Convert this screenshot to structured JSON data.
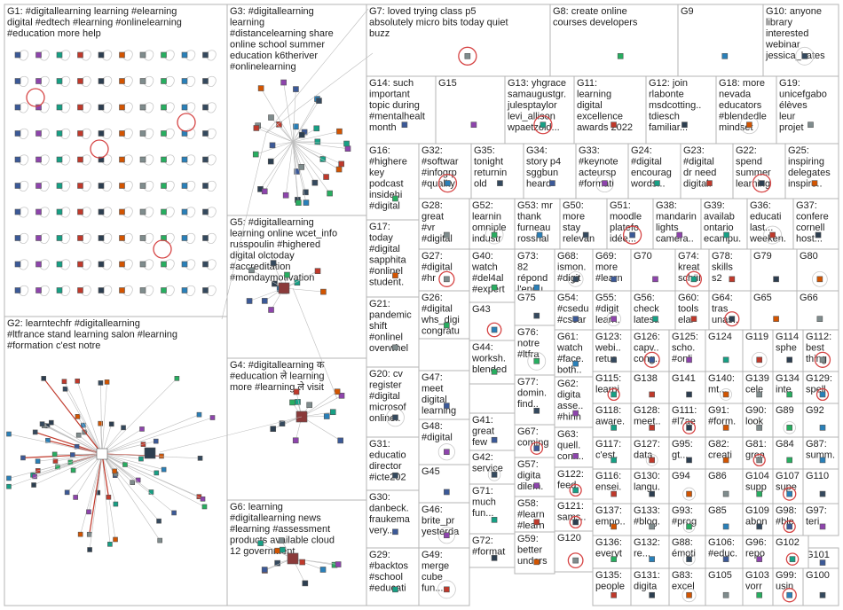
{
  "groups": [
    {
      "id": "G1",
      "label": "G1: #digitallearning learning #elearning digital #edtech #learning #onlinelearning #education more help"
    },
    {
      "id": "G2",
      "label": "G2: learntechfr #digitallearning #ltfrance stand learning salon #learning #formation c'est notre"
    },
    {
      "id": "G3",
      "label": "G3: #digitallearning learning #distancelearning share online school summer education k6theriver #onlinelearning"
    },
    {
      "id": "G4",
      "label": "G4: #digitallearning क #education ले learning more #learning ले visit"
    },
    {
      "id": "G5",
      "label": "G5: #digitallearning learning online wcet_info russpoulin #highered digital olctoday #accreditation #mondaymotivation"
    },
    {
      "id": "G6",
      "label": "G6: learning #digitallearning news #learning #assessment products available cloud 12 government"
    },
    {
      "id": "G7",
      "label": "G7: loved trying class p5 absolutely micro bits today quiet buzz"
    },
    {
      "id": "G8",
      "label": "G8: create online courses developers"
    },
    {
      "id": "G9",
      "label": "G9"
    },
    {
      "id": "G10",
      "label": "G10: anyone library interested webinar jessica_bates..."
    },
    {
      "id": "G11",
      "label": "G11: learning digital excellence awards 2022 candidats..."
    },
    {
      "id": "G12",
      "label": "G12: join rlabonte msdcotting... tdiesch familiar..."
    },
    {
      "id": "G13",
      "label": "G13: yhgrace samaugustgr... julesptaylor levi_allison42 wpaetzold..."
    },
    {
      "id": "G14",
      "label": "G14: such important topic during #mentalhealt... month come..."
    },
    {
      "id": "G15",
      "label": "G15"
    },
    {
      "id": "G16",
      "label": "G16: #highered key podcast insidehig... #digitalle..."
    },
    {
      "id": "G17",
      "label": "G17: today #digitalle... sapphital #onlinele... student..."
    },
    {
      "id": "G18",
      "label": "G18: more nevada educators #blendedle... mindset"
    },
    {
      "id": "G19",
      "label": "G19: unicefgabon élèves leur projet #digital..."
    },
    {
      "id": "G20",
      "label": "G20: cv register #digitalle... microsoft... online..."
    },
    {
      "id": "G21",
      "label": "G21: pandemic shift #onlinele... overwhel..."
    },
    {
      "id": "G22",
      "label": "G22: spend summer learning..."
    },
    {
      "id": "G23",
      "label": "G23: #digitalle... dr need digital..."
    },
    {
      "id": "G24",
      "label": "G24: #digitalle... encourag... words..."
    },
    {
      "id": "G25",
      "label": "G25: inspiring delegates inspire..."
    },
    {
      "id": "G26",
      "label": "G26: #digitalle... whs_digi... congratul..."
    },
    {
      "id": "G27",
      "label": "G27: #digitalle... #hr #bessers..."
    },
    {
      "id": "G28",
      "label": "G28: great #vr #digitalle... s1 fun..."
    },
    {
      "id": "G29",
      "label": "G29: #backtos... #school #educati..."
    },
    {
      "id": "G30",
      "label": "G30: danbeck... fraukema... very..."
    },
    {
      "id": "G31",
      "label": "G31: education director #icte202..."
    },
    {
      "id": "G32",
      "label": "G32: #software #infogrphic #qualityc..."
    },
    {
      "id": "G33",
      "label": "G33: #keynote acteursp... #formatio..."
    },
    {
      "id": "G34",
      "label": "G34: story p4 sggbun heard teasing..."
    },
    {
      "id": "G35",
      "label": "G35: tonight returning old work..."
    },
    {
      "id": "G36",
      "label": "G36: educati... last... weeken..."
    },
    {
      "id": "G37",
      "label": "G37: confere... cornell_... host..."
    },
    {
      "id": "G38",
      "label": "G38: mandarin lights camera..."
    },
    {
      "id": "G39",
      "label": "G39: available ontarioe... ecampu..."
    },
    {
      "id": "G40",
      "label": "G40: watch #del4all #expert..."
    },
    {
      "id": "G41",
      "label": "G41: great few hours..."
    },
    {
      "id": "G42",
      "label": "G42: services tech"
    },
    {
      "id": "G43",
      "label": "G43"
    },
    {
      "id": "G44",
      "label": "G44: worksh... blended teachin..."
    },
    {
      "id": "G45",
      "label": "G45"
    },
    {
      "id": "G46",
      "label": "G46: brite_pro... yesterda..."
    },
    {
      "id": "G47",
      "label": "G47: meet digital learning..."
    },
    {
      "id": "G48",
      "label": "G48: #digitalle..."
    },
    {
      "id": "G49",
      "label": "G49: merge cube fun..."
    },
    {
      "id": "G50",
      "label": "G50: more stay relevant..."
    },
    {
      "id": "G51",
      "label": "G51: moodle platefor... idée..."
    },
    {
      "id": "G52",
      "label": "G52: learning omniplex industry..."
    },
    {
      "id": "G53",
      "label": "G53: mr thank furneaux rosshall..."
    },
    {
      "id": "G54",
      "label": "G54: #csedu... #cscar..."
    },
    {
      "id": "G55",
      "label": "G55: #digitalle... learn..."
    },
    {
      "id": "G56",
      "label": "G56: check latest..."
    },
    {
      "id": "G57",
      "label": "G57: digital dilem..."
    },
    {
      "id": "G58",
      "label": "G58: #learni... #learni..."
    },
    {
      "id": "G59",
      "label": "G59: better unders..."
    },
    {
      "id": "G60",
      "label": "G60: tools elar ss..."
    },
    {
      "id": "G61",
      "label": "G61: watch #face... both..."
    },
    {
      "id": "G62",
      "label": "G62: digital asse... #hirin..."
    },
    {
      "id": "G63",
      "label": "G63: quell... conn... km..."
    },
    {
      "id": "G64",
      "label": "G64: tras unas..."
    },
    {
      "id": "G65",
      "label": "G65"
    },
    {
      "id": "G66",
      "label": "G66"
    },
    {
      "id": "G67",
      "label": "G67: coming friday..."
    },
    {
      "id": "G68",
      "label": "G68: ismon... #digita..."
    },
    {
      "id": "G69",
      "label": "G69: more #learni..."
    },
    {
      "id": "G70",
      "label": "G70"
    },
    {
      "id": "G71",
      "label": "G71: much fun..."
    },
    {
      "id": "G72",
      "label": "G72: #format... #digitall..."
    },
    {
      "id": "G73",
      "label": "G73: 82 répond... l'enquê..."
    },
    {
      "id": "G74",
      "label": "G74: kreative schüler..."
    },
    {
      "id": "G75",
      "label": "G75"
    },
    {
      "id": "G76",
      "label": "G76: notre #ltfran..."
    },
    {
      "id": "G77",
      "label": "G77: domin... find..."
    },
    {
      "id": "G78",
      "label": "G78: skills s2 using..."
    },
    {
      "id": "G79",
      "label": "G79"
    },
    {
      "id": "G80",
      "label": "G80"
    },
    {
      "id": "G81",
      "label": "G81: great..."
    },
    {
      "id": "G82",
      "label": "G82: creati..."
    },
    {
      "id": "G83",
      "label": "G83: excel..."
    },
    {
      "id": "G84",
      "label": "G84"
    },
    {
      "id": "G85",
      "label": "G85"
    },
    {
      "id": "G86",
      "label": "G86"
    },
    {
      "id": "G87",
      "label": "G87: summ..."
    },
    {
      "id": "G88",
      "label": "G88: émoti..."
    },
    {
      "id": "G89",
      "label": "G89"
    },
    {
      "id": "G90",
      "label": "G90: lookin..."
    },
    {
      "id": "G91",
      "label": "G91: #form..."
    },
    {
      "id": "G92",
      "label": "G92"
    },
    {
      "id": "G93",
      "label": "G93: #prog..."
    },
    {
      "id": "G94",
      "label": "G94"
    },
    {
      "id": "G95",
      "label": "G95: gt..."
    },
    {
      "id": "G96",
      "label": "G96: repor..."
    },
    {
      "id": "G97",
      "label": "G97: teri"
    },
    {
      "id": "G98",
      "label": "G98: #blend..."
    },
    {
      "id": "G99",
      "label": "G99: using"
    },
    {
      "id": "G100",
      "label": "G100"
    },
    {
      "id": "G101",
      "label": "G101"
    },
    {
      "id": "G102",
      "label": "G102"
    },
    {
      "id": "G103",
      "label": "G103: vorre..."
    },
    {
      "id": "G104",
      "label": "G104: suppo..."
    },
    {
      "id": "G105",
      "label": "G105"
    },
    {
      "id": "G106",
      "label": "G106: #educ..."
    },
    {
      "id": "G107",
      "label": "G107: super..."
    },
    {
      "id": "G108",
      "label": "G108: ..."
    },
    {
      "id": "G109",
      "label": "G109: abon..."
    },
    {
      "id": "G110",
      "label": "G110"
    },
    {
      "id": "G111",
      "label": "G111: #l7ae..."
    },
    {
      "id": "G112",
      "label": "G112: best thing..."
    },
    {
      "id": "G113",
      "label": "G113: thank joed..."
    },
    {
      "id": "G114",
      "label": "G114: sphe..."
    },
    {
      "id": "G115",
      "label": "G115: learni..."
    },
    {
      "id": "G116",
      "label": "G116: ensei..."
    },
    {
      "id": "G117",
      "label": "G117: c'est..."
    },
    {
      "id": "G118",
      "label": "G118: aware..."
    },
    {
      "id": "G119",
      "label": "G119"
    },
    {
      "id": "G120",
      "label": "G120"
    },
    {
      "id": "G121",
      "label": "G121: sams..."
    },
    {
      "id": "G122",
      "label": "G122: feed..."
    },
    {
      "id": "G123",
      "label": "G123: webi... retur..."
    },
    {
      "id": "G124",
      "label": "G124"
    },
    {
      "id": "G125",
      "label": "G125: scho... #onli..."
    },
    {
      "id": "G126",
      "label": "G126: capv... cong..."
    },
    {
      "id": "G127",
      "label": "G127: data"
    },
    {
      "id": "G128",
      "label": "G128: meet..."
    },
    {
      "id": "G129",
      "label": "G129: spelli..."
    },
    {
      "id": "G130",
      "label": "G130: langu..."
    },
    {
      "id": "G131",
      "label": "G131: digital..."
    },
    {
      "id": "G132",
      "label": "G132: re..."
    },
    {
      "id": "G133",
      "label": "G133: #blog..."
    },
    {
      "id": "G134",
      "label": "G134: intern..."
    },
    {
      "id": "G135",
      "label": "G135: people"
    },
    {
      "id": "G136",
      "label": "G136: everyt..."
    },
    {
      "id": "G137",
      "label": "G137: empo..."
    },
    {
      "id": "G138",
      "label": "G138"
    },
    {
      "id": "G139",
      "label": "G139: celebr..."
    },
    {
      "id": "G140",
      "label": "G140: mt..."
    },
    {
      "id": "G141",
      "label": "G141"
    }
  ]
}
